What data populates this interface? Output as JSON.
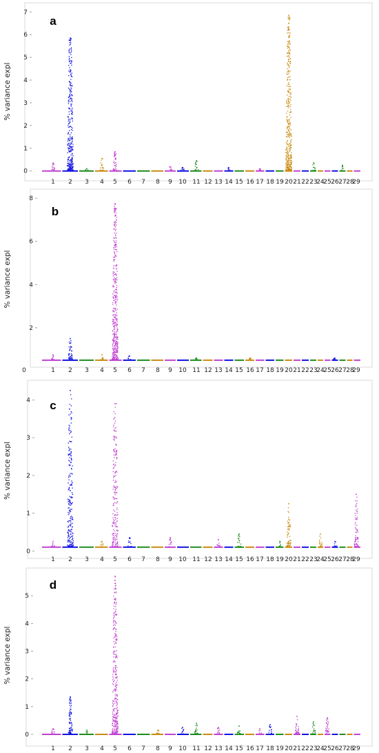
{
  "figure": {
    "ylabel": "% variance expl",
    "chromosomes": [
      "1",
      "2",
      "3",
      "4",
      "5",
      "6",
      "7",
      "8",
      "9",
      "10",
      "11",
      "12",
      "13",
      "14",
      "15",
      "16",
      "17",
      "18",
      "19",
      "20",
      "21",
      "22",
      "23",
      "24",
      "25",
      "26",
      "27",
      "28",
      "29"
    ],
    "colors": {
      "purple": "#c040d0",
      "blue": "#1010e0",
      "green": "#1e8c1e",
      "orange": "#c88a10"
    },
    "chromosome_colors": [
      "purple",
      "blue",
      "green",
      "orange",
      "purple",
      "blue",
      "green",
      "orange",
      "purple",
      "blue",
      "green",
      "orange",
      "purple",
      "blue",
      "green",
      "orange",
      "purple",
      "blue",
      "green",
      "orange",
      "purple",
      "blue",
      "green",
      "orange",
      "purple",
      "blue",
      "green",
      "orange",
      "purple"
    ]
  },
  "chart_data": [
    {
      "type": "scatter",
      "panel": "a",
      "ylabel": "% variance expl",
      "yticks": [
        0,
        1,
        2,
        3,
        4,
        5,
        6,
        7
      ],
      "ylim": [
        -0.1,
        7.1
      ],
      "show_x_zero": false,
      "baseline": 0.0,
      "peaks": [
        {
          "chromosome": "1",
          "value": 0.35
        },
        {
          "chromosome": "2",
          "value": 5.85
        },
        {
          "chromosome": "3",
          "value": 0.1
        },
        {
          "chromosome": "4",
          "value": 0.55
        },
        {
          "chromosome": "5",
          "value": 0.85
        },
        {
          "chromosome": "9",
          "value": 0.18
        },
        {
          "chromosome": "10",
          "value": 0.15
        },
        {
          "chromosome": "11",
          "value": 0.45
        },
        {
          "chromosome": "14",
          "value": 0.15
        },
        {
          "chromosome": "17",
          "value": 0.1
        },
        {
          "chromosome": "20",
          "value": 6.85
        },
        {
          "chromosome": "23",
          "value": 0.35
        },
        {
          "chromosome": "27",
          "value": 0.25
        }
      ]
    },
    {
      "type": "scatter",
      "panel": "b",
      "ylabel": "% variance expl",
      "yticks": [
        2,
        4,
        6,
        8
      ],
      "ylim": [
        0.4,
        8.1
      ],
      "show_x_zero": true,
      "baseline": 0.5,
      "peaks": [
        {
          "chromosome": "1",
          "value": 0.75
        },
        {
          "chromosome": "2",
          "value": 1.5
        },
        {
          "chromosome": "4",
          "value": 0.75
        },
        {
          "chromosome": "5",
          "value": 7.75
        },
        {
          "chromosome": "6",
          "value": 0.7
        },
        {
          "chromosome": "11",
          "value": 0.6
        },
        {
          "chromosome": "16",
          "value": 0.6
        },
        {
          "chromosome": "26",
          "value": 0.6
        }
      ]
    },
    {
      "type": "scatter",
      "panel": "c",
      "ylabel": "% variance expl",
      "yticks": [
        0,
        1,
        2,
        3,
        4
      ],
      "ylim": [
        -0.05,
        4.3
      ],
      "show_x_zero": false,
      "baseline": 0.1,
      "peaks": [
        {
          "chromosome": "1",
          "value": 0.25
        },
        {
          "chromosome": "2",
          "value": 4.25
        },
        {
          "chromosome": "4",
          "value": 0.25
        },
        {
          "chromosome": "5",
          "value": 3.9
        },
        {
          "chromosome": "6",
          "value": 0.35
        },
        {
          "chromosome": "9",
          "value": 0.35
        },
        {
          "chromosome": "13",
          "value": 0.3
        },
        {
          "chromosome": "15",
          "value": 0.45
        },
        {
          "chromosome": "19",
          "value": 0.25
        },
        {
          "chromosome": "20",
          "value": 1.25
        },
        {
          "chromosome": "24",
          "value": 0.45
        },
        {
          "chromosome": "26",
          "value": 0.25
        },
        {
          "chromosome": "29",
          "value": 1.5
        }
      ]
    },
    {
      "type": "scatter",
      "panel": "d",
      "ylabel": "% variance expl",
      "yticks": [
        0,
        1,
        2,
        3,
        4,
        5
      ],
      "ylim": [
        -0.1,
        5.8
      ],
      "show_x_zero": false,
      "baseline": 0.0,
      "peaks": [
        {
          "chromosome": "1",
          "value": 0.2
        },
        {
          "chromosome": "2",
          "value": 1.35
        },
        {
          "chromosome": "3",
          "value": 0.15
        },
        {
          "chromosome": "5",
          "value": 5.7
        },
        {
          "chromosome": "8",
          "value": 0.15
        },
        {
          "chromosome": "10",
          "value": 0.25
        },
        {
          "chromosome": "11",
          "value": 0.4
        },
        {
          "chromosome": "13",
          "value": 0.25
        },
        {
          "chromosome": "15",
          "value": 0.3
        },
        {
          "chromosome": "17",
          "value": 0.2
        },
        {
          "chromosome": "18",
          "value": 0.35
        },
        {
          "chromosome": "21",
          "value": 0.65
        },
        {
          "chromosome": "23",
          "value": 0.45
        },
        {
          "chromosome": "25",
          "value": 0.6
        }
      ]
    }
  ]
}
